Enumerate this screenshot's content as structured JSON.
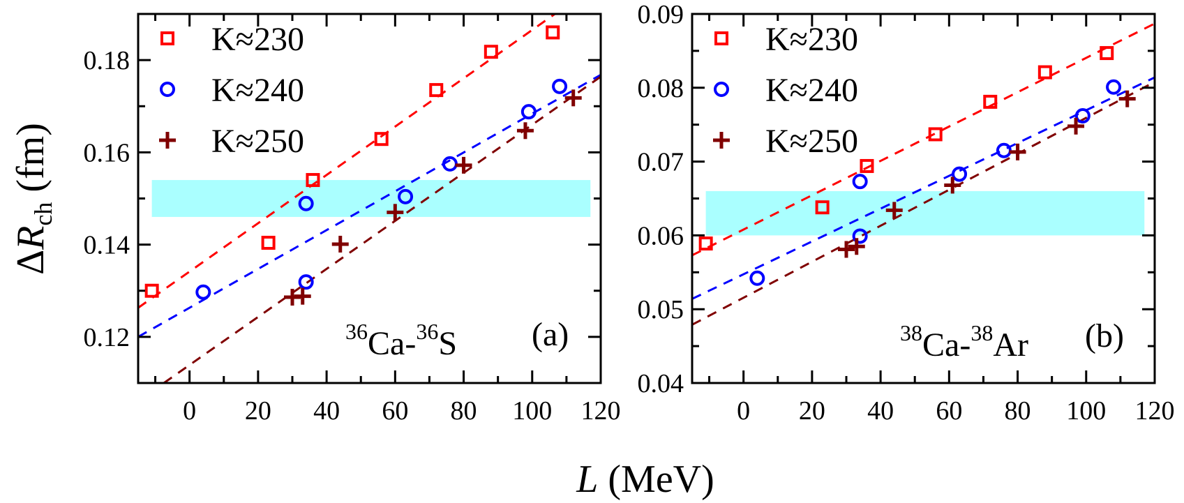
{
  "chart_data": [
    {
      "type": "scatter",
      "panel_label": "(a)",
      "annotation": {
        "mass1": "36",
        "el1": "Ca",
        "sep": "-",
        "mass2": "36",
        "el2": "S"
      },
      "xlabel": "L (MeV)",
      "ylabel": "ΔR_ch (fm)",
      "xlim": [
        -15,
        120
      ],
      "ylim": [
        0.11,
        0.19
      ],
      "xticks": [
        0,
        20,
        40,
        60,
        80,
        100,
        120
      ],
      "xtick_labels": [
        "0",
        "20",
        "40",
        "60",
        "80",
        "100",
        "120"
      ],
      "yticks": [
        0.12,
        0.14,
        0.16,
        0.18
      ],
      "ytick_labels": [
        "0.12",
        "0.14",
        "0.16",
        "0.18"
      ],
      "grid": false,
      "legend_position": "top-left",
      "band": {
        "x": [
          -11,
          117
        ],
        "y": [
          0.146,
          0.154
        ],
        "color": "#aaffff"
      },
      "series": [
        {
          "name": "K≈230",
          "marker": "square",
          "color": "#ff0000",
          "x": [
            -11,
            23,
            36,
            56,
            72,
            88,
            106
          ],
          "y": [
            0.13,
            0.1404,
            0.154,
            0.1629,
            0.1735,
            0.1818,
            0.186
          ],
          "fit": {
            "x": [
              -15,
              120
            ],
            "y": [
              0.1263,
              0.197
            ]
          }
        },
        {
          "name": "K≈240",
          "marker": "circle",
          "color": "#0000ff",
          "x": [
            4,
            34,
            34,
            63,
            76,
            99,
            108
          ],
          "y": [
            0.1297,
            0.1319,
            0.1489,
            0.1504,
            0.1575,
            0.1688,
            0.1743
          ],
          "fit": {
            "x": [
              -15,
              120
            ],
            "y": [
              0.12,
              0.1768
            ]
          }
        },
        {
          "name": "K≈250",
          "marker": "plus",
          "color": "#800000",
          "x": [
            30,
            33,
            44,
            60,
            80,
            98,
            112
          ],
          "y": [
            0.1286,
            0.1288,
            0.1401,
            0.147,
            0.1572,
            0.1647,
            0.1718
          ],
          "fit": {
            "x": [
              -7.5,
              120
            ],
            "y": [
              0.11,
              0.1764
            ]
          }
        }
      ]
    },
    {
      "type": "scatter",
      "panel_label": "(b)",
      "annotation": {
        "mass1": "38",
        "el1": "Ca",
        "sep": "-",
        "mass2": "38",
        "el2": "Ar"
      },
      "xlabel": "L (MeV)",
      "ylabel": "",
      "xlim": [
        -15,
        120
      ],
      "ylim": [
        0.04,
        0.09
      ],
      "xticks": [
        0,
        20,
        40,
        60,
        80,
        100,
        120
      ],
      "xtick_labels": [
        "0",
        "20",
        "40",
        "60",
        "80",
        "100",
        "120"
      ],
      "yticks": [
        0.04,
        0.05,
        0.06,
        0.07,
        0.08,
        0.09
      ],
      "ytick_labels": [
        "0.04",
        "0.05",
        "0.06",
        "0.07",
        "0.08",
        "0.09"
      ],
      "grid": false,
      "legend_position": "top-left",
      "band": {
        "x": [
          -11,
          117
        ],
        "y": [
          0.06,
          0.066
        ],
        "color": "#aaffff"
      },
      "series": [
        {
          "name": "K≈230",
          "marker": "square",
          "color": "#ff0000",
          "x": [
            -11,
            23,
            36,
            56,
            72,
            88,
            106
          ],
          "y": [
            0.0589,
            0.0638,
            0.0694,
            0.0737,
            0.0781,
            0.0821,
            0.0847
          ],
          "fit": {
            "x": [
              -15,
              120
            ],
            "y": [
              0.0573,
              0.0887
            ]
          }
        },
        {
          "name": "K≈240",
          "marker": "circle",
          "color": "#0000ff",
          "x": [
            4,
            34,
            34,
            63,
            76,
            99,
            108
          ],
          "y": [
            0.0542,
            0.0599,
            0.0673,
            0.0683,
            0.0715,
            0.0762,
            0.0801
          ],
          "fit": {
            "x": [
              -15,
              120
            ],
            "y": [
              0.0514,
              0.0814
            ]
          }
        },
        {
          "name": "K≈250",
          "marker": "plus",
          "color": "#800000",
          "x": [
            30,
            33,
            44,
            61,
            80,
            97,
            112
          ],
          "y": [
            0.0581,
            0.0585,
            0.0634,
            0.0668,
            0.0713,
            0.0748,
            0.0785
          ],
          "fit": {
            "x": [
              -15,
              120
            ],
            "y": [
              0.0479,
              0.0808
            ]
          }
        }
      ]
    }
  ],
  "labels": {
    "ylabel_delta": "Δ",
    "ylabel_R": "R",
    "ylabel_sub": "ch",
    "ylabel_unit": " (fm)",
    "xlabel_L": "L",
    "xlabel_unit": " (MeV)"
  }
}
